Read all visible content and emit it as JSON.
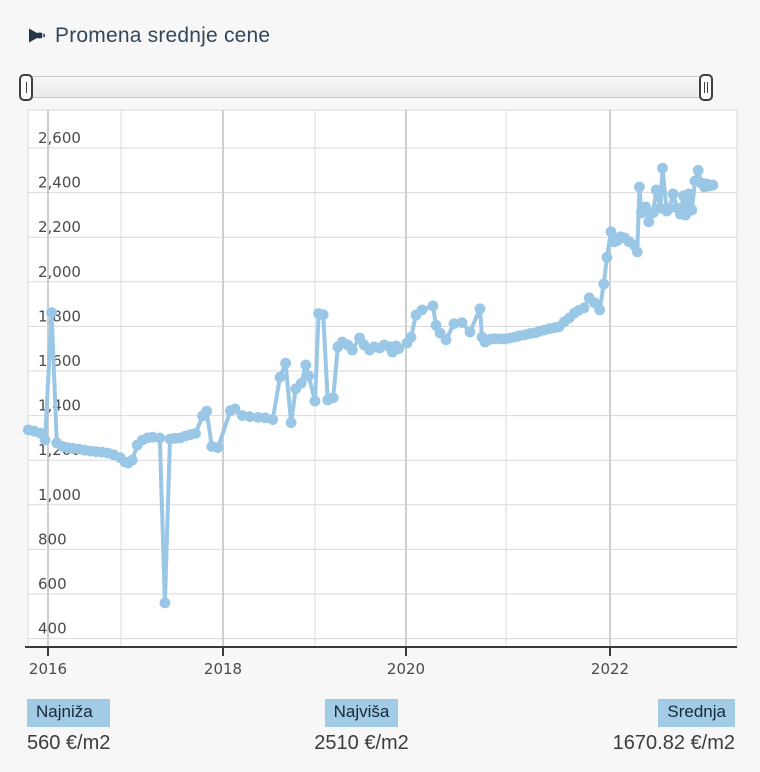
{
  "header": {
    "title": "Promena srednje cene",
    "icon": "megaphone-icon"
  },
  "slider": {
    "kind": "range-selector",
    "left_handle": "|",
    "right_handle": "||"
  },
  "stats": [
    {
      "label": "Najniža",
      "value": "560 €/m2"
    },
    {
      "label": "Najviša",
      "value": "2510 €/m2"
    },
    {
      "label": "Srednja",
      "value": "1670.82 €/m2"
    }
  ],
  "colors": {
    "line": "#9ac7e6",
    "badge_bg": "#a2cbe6",
    "badge_text": "#17293a",
    "grid": "#d9d9d9",
    "axis": "#3a3a3a",
    "tick_text": "#4b4b4b",
    "plot_bg": "#ffffff",
    "page_bg": "#f7f7f7",
    "title_text": "#33475b"
  },
  "chart_data": {
    "type": "line",
    "title": "Promena srednje cene",
    "ylabel": "",
    "xlabel": "",
    "unit": "€/m2",
    "grid": true,
    "legend": "none",
    "y_axis": {
      "ticks": [
        400,
        600,
        800,
        1000,
        1200,
        1400,
        1600,
        1800,
        2000,
        2200,
        2400,
        2600
      ],
      "ylim": [
        360,
        2770
      ]
    },
    "x_axis": {
      "labeled_years": [
        2016,
        2018,
        2020,
        2022
      ],
      "gridline_years": [
        2016,
        2017,
        2018,
        2019,
        2020,
        2021,
        2022
      ],
      "xlim": [
        2015.7,
        2023.2
      ]
    },
    "summary": {
      "min": 560,
      "max": 2510,
      "mean": 1670.82
    },
    "points": [
      [
        2015.73,
        1336
      ],
      [
        2015.81,
        1330
      ],
      [
        2015.89,
        1322
      ],
      [
        2015.96,
        1291
      ],
      [
        2016.05,
        1862
      ],
      [
        2016.12,
        1277
      ],
      [
        2016.2,
        1262
      ],
      [
        2016.27,
        1256
      ],
      [
        2016.34,
        1253
      ],
      [
        2016.42,
        1250
      ],
      [
        2016.5,
        1245
      ],
      [
        2016.58,
        1241
      ],
      [
        2016.66,
        1238
      ],
      [
        2016.74,
        1236
      ],
      [
        2016.82,
        1232
      ],
      [
        2016.9,
        1224
      ],
      [
        2016.99,
        1211
      ],
      [
        2017.04,
        1192
      ],
      [
        2017.07,
        1187
      ],
      [
        2017.11,
        1200
      ],
      [
        2017.16,
        1268
      ],
      [
        2017.21,
        1290
      ],
      [
        2017.26,
        1300
      ],
      [
        2017.31,
        1303
      ],
      [
        2017.38,
        1300
      ],
      [
        2017.43,
        560
      ],
      [
        2017.48,
        1295
      ],
      [
        2017.53,
        1298
      ],
      [
        2017.58,
        1300
      ],
      [
        2017.63,
        1308
      ],
      [
        2017.68,
        1315
      ],
      [
        2017.73,
        1320
      ],
      [
        2017.8,
        1398
      ],
      [
        2017.84,
        1420
      ],
      [
        2017.89,
        1262
      ],
      [
        2017.95,
        1257
      ],
      [
        2018.08,
        1422
      ],
      [
        2018.13,
        1430
      ],
      [
        2018.21,
        1400
      ],
      [
        2018.29,
        1395
      ],
      [
        2018.38,
        1392
      ],
      [
        2018.46,
        1390
      ],
      [
        2018.54,
        1382
      ],
      [
        2018.62,
        1572
      ],
      [
        2018.68,
        1635
      ],
      [
        2018.74,
        1368
      ],
      [
        2018.79,
        1520
      ],
      [
        2018.85,
        1545
      ],
      [
        2018.9,
        1627
      ],
      [
        2018.93,
        1578
      ],
      [
        2019.0,
        1465
      ],
      [
        2019.04,
        1858
      ],
      [
        2019.09,
        1852
      ],
      [
        2019.14,
        1470
      ],
      [
        2019.2,
        1480
      ],
      [
        2019.25,
        1708
      ],
      [
        2019.3,
        1730
      ],
      [
        2019.36,
        1717
      ],
      [
        2019.41,
        1694
      ],
      [
        2019.49,
        1748
      ],
      [
        2019.54,
        1717
      ],
      [
        2019.6,
        1694
      ],
      [
        2019.65,
        1708
      ],
      [
        2019.71,
        1703
      ],
      [
        2019.76,
        1717
      ],
      [
        2019.82,
        1708
      ],
      [
        2019.85,
        1685
      ],
      [
        2019.89,
        1712
      ],
      [
        2019.92,
        1700
      ],
      [
        2020.01,
        1725
      ],
      [
        2020.05,
        1752
      ],
      [
        2020.1,
        1851
      ],
      [
        2020.16,
        1874
      ],
      [
        2020.27,
        1892
      ],
      [
        2020.3,
        1805
      ],
      [
        2020.34,
        1770
      ],
      [
        2020.4,
        1740
      ],
      [
        2020.48,
        1812
      ],
      [
        2020.56,
        1817
      ],
      [
        2020.64,
        1775
      ],
      [
        2020.74,
        1879
      ],
      [
        2020.76,
        1752
      ],
      [
        2020.79,
        1730
      ],
      [
        2020.84,
        1742
      ],
      [
        2020.89,
        1745
      ],
      [
        2020.94,
        1744
      ],
      [
        2020.99,
        1744
      ],
      [
        2021.04,
        1748
      ],
      [
        2021.09,
        1753
      ],
      [
        2021.13,
        1758
      ],
      [
        2021.18,
        1762
      ],
      [
        2021.23,
        1768
      ],
      [
        2021.28,
        1771
      ],
      [
        2021.32,
        1778
      ],
      [
        2021.37,
        1784
      ],
      [
        2021.42,
        1790
      ],
      [
        2021.47,
        1794
      ],
      [
        2021.51,
        1798
      ],
      [
        2021.56,
        1820
      ],
      [
        2021.61,
        1838
      ],
      [
        2021.66,
        1860
      ],
      [
        2021.7,
        1872
      ],
      [
        2021.75,
        1883
      ],
      [
        2021.8,
        1928
      ],
      [
        2021.85,
        1906
      ],
      [
        2021.9,
        1874
      ],
      [
        2021.94,
        1990
      ],
      [
        2021.97,
        2110
      ],
      [
        2022.01,
        2224
      ],
      [
        2022.04,
        2179
      ],
      [
        2022.07,
        2185
      ],
      [
        2022.1,
        2202
      ],
      [
        2022.14,
        2197
      ],
      [
        2022.18,
        2180
      ],
      [
        2022.23,
        2165
      ],
      [
        2022.26,
        2134
      ],
      [
        2022.28,
        2425
      ],
      [
        2022.3,
        2309
      ],
      [
        2022.34,
        2336
      ],
      [
        2022.37,
        2269
      ],
      [
        2022.41,
        2310
      ],
      [
        2022.44,
        2412
      ],
      [
        2022.48,
        2330
      ],
      [
        2022.5,
        2510
      ],
      [
        2022.54,
        2317
      ],
      [
        2022.57,
        2331
      ],
      [
        2022.6,
        2394
      ],
      [
        2022.64,
        2331
      ],
      [
        2022.67,
        2304
      ],
      [
        2022.7,
        2385
      ],
      [
        2022.72,
        2299
      ],
      [
        2022.75,
        2394
      ],
      [
        2022.78,
        2322
      ],
      [
        2022.81,
        2452
      ],
      [
        2022.84,
        2500
      ],
      [
        2022.87,
        2443
      ],
      [
        2022.9,
        2425
      ],
      [
        2022.92,
        2439
      ],
      [
        2022.95,
        2430
      ],
      [
        2022.98,
        2434
      ]
    ]
  }
}
